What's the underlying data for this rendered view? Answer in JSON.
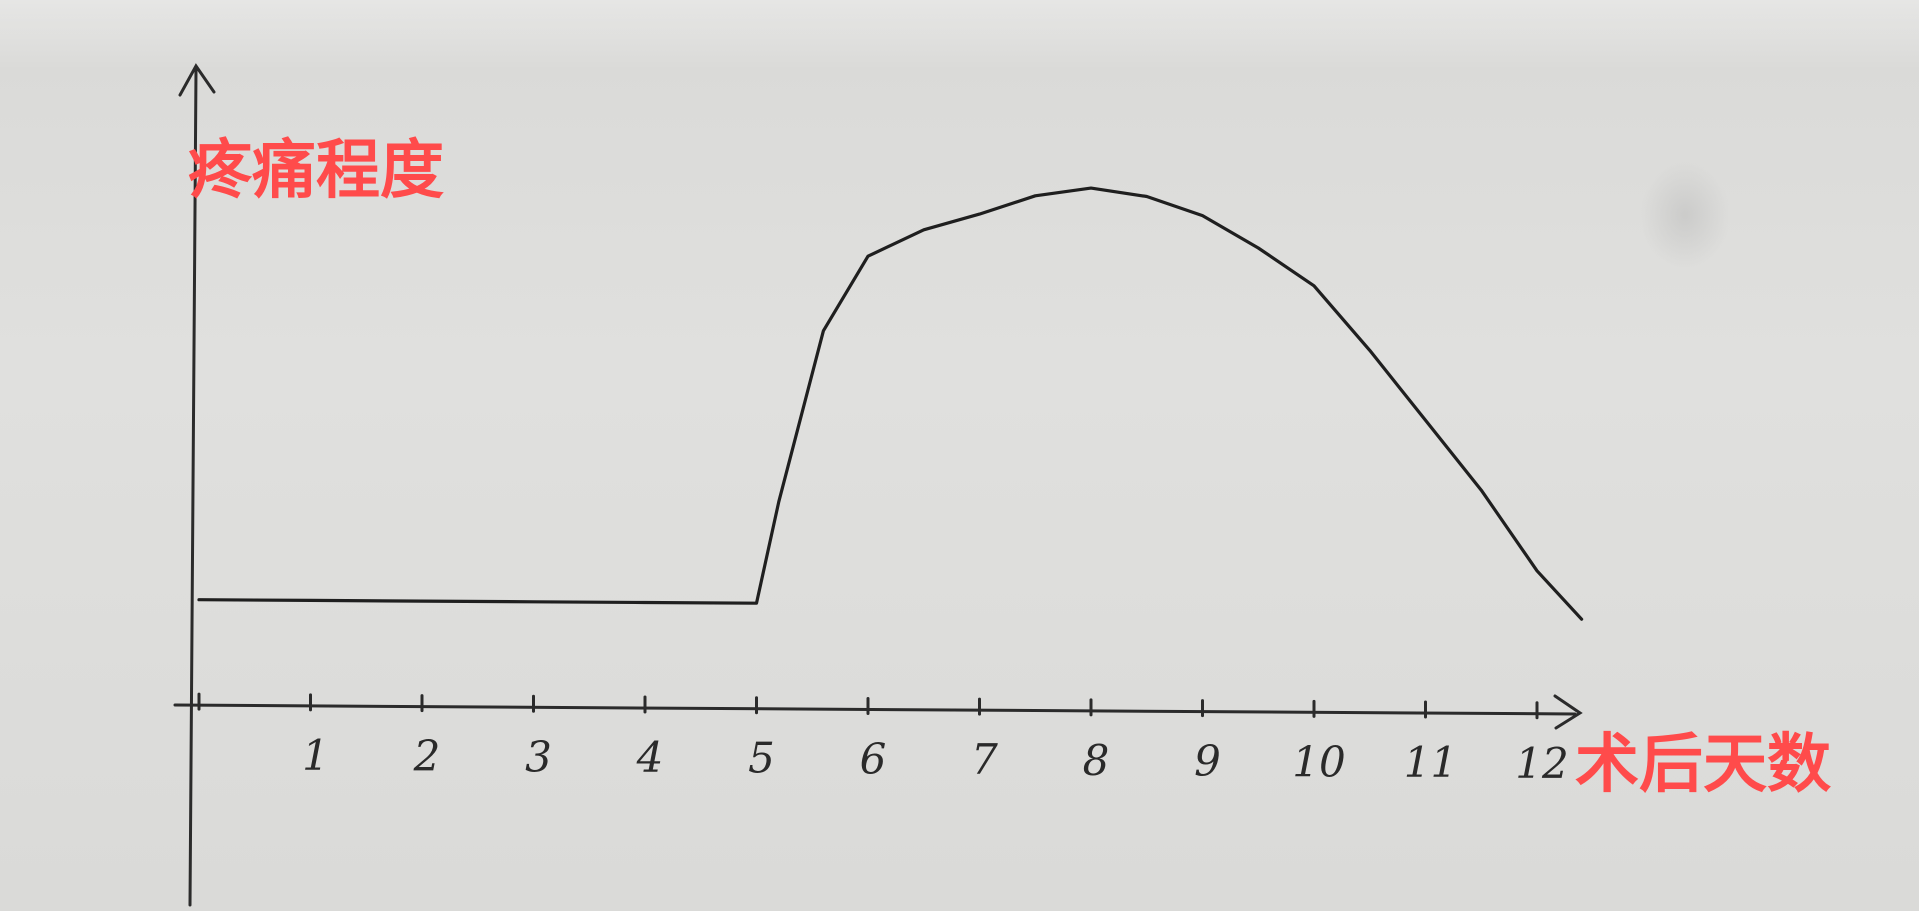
{
  "chart_data": {
    "type": "line",
    "title": "",
    "ylabel": "疼痛程度",
    "xlabel": "术后天数",
    "x_tick_labels": [
      "1",
      "2",
      "3",
      "4",
      "5",
      "6",
      "7",
      "8",
      "9",
      "10",
      "11",
      "12"
    ],
    "xlim": [
      0,
      12.2
    ],
    "ylim": [
      0,
      10
    ],
    "grid": false,
    "legend": "none",
    "colors": {
      "axis": "#2b2b2b",
      "line": "#1f1f1f",
      "labels": "#ff4b4b"
    },
    "series": [
      {
        "x": [
          0,
          1,
          2,
          3,
          4,
          5,
          5.2,
          5.6,
          6,
          6.5,
          7,
          7.5,
          8,
          8.5,
          9,
          9.5,
          10,
          10.5,
          11,
          11.5,
          12,
          12.4
        ],
        "y": [
          1.5,
          1.5,
          1.5,
          1.5,
          1.5,
          1.5,
          3.4,
          6.6,
          8.0,
          8.5,
          8.8,
          9.15,
          9.3,
          9.15,
          8.8,
          8.2,
          7.5,
          6.3,
          5.0,
          3.7,
          2.2,
          1.3
        ]
      }
    ]
  }
}
